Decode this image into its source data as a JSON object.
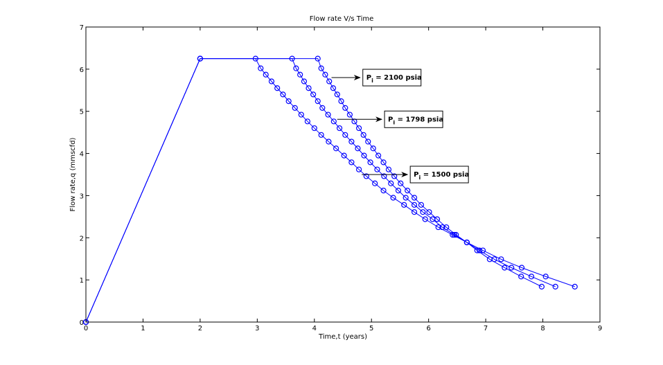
{
  "chart_data": {
    "type": "line",
    "title": "Flow rate V/s Time",
    "xlabel": "Time,t (years)",
    "ylabel": "Flow rate,q (mmscfd)",
    "xlim": [
      0,
      9
    ],
    "ylim": [
      0,
      7
    ],
    "xticks": [
      "0",
      "1",
      "2",
      "3",
      "4",
      "5",
      "6",
      "7",
      "8",
      "9"
    ],
    "yticks": [
      "0",
      "1",
      "2",
      "3",
      "4",
      "5",
      "6",
      "7"
    ],
    "grid": false,
    "color": "#0000ff",
    "marker": "open-circle",
    "series": [
      {
        "t": [
          0,
          2,
          2.97,
          3.06,
          3.15,
          3.25,
          3.35,
          3.45,
          3.55,
          3.66,
          3.77,
          3.88,
          4.0,
          4.12,
          4.25,
          4.38,
          4.52,
          4.65,
          4.78,
          4.91,
          5.06,
          5.21,
          5.38,
          5.57,
          5.75,
          5.94,
          6.17,
          6.42,
          6.67,
          6.95,
          7.27,
          7.63,
          8.05,
          8.56
        ],
        "q": [
          0,
          6.25,
          6.25,
          6.02,
          5.87,
          5.71,
          5.55,
          5.4,
          5.24,
          5.08,
          4.92,
          4.76,
          4.6,
          4.44,
          4.28,
          4.12,
          3.95,
          3.79,
          3.62,
          3.46,
          3.29,
          3.12,
          2.95,
          2.78,
          2.61,
          2.44,
          2.25,
          2.07,
          1.89,
          1.7,
          1.49,
          1.29,
          1.08,
          0.84
        ]
      },
      {
        "t": [
          0,
          2,
          3.61,
          3.68,
          3.75,
          3.82,
          3.9,
          3.98,
          4.06,
          4.14,
          4.24,
          4.34,
          4.44,
          4.54,
          4.65,
          4.76,
          4.87,
          4.98,
          5.1,
          5.22,
          5.34,
          5.47,
          5.6,
          5.75,
          5.9,
          6.07,
          6.24,
          6.45,
          6.67,
          6.89,
          7.15,
          7.45,
          7.8,
          8.22
        ],
        "q": [
          0,
          6.25,
          6.25,
          6.02,
          5.87,
          5.71,
          5.55,
          5.4,
          5.24,
          5.08,
          4.92,
          4.76,
          4.6,
          4.44,
          4.28,
          4.12,
          3.95,
          3.79,
          3.62,
          3.46,
          3.29,
          3.12,
          2.95,
          2.78,
          2.61,
          2.44,
          2.25,
          2.07,
          1.89,
          1.7,
          1.49,
          1.29,
          1.08,
          0.84
        ]
      },
      {
        "t": [
          0,
          2,
          4.06,
          4.12,
          4.19,
          4.26,
          4.33,
          4.4,
          4.47,
          4.54,
          4.62,
          4.7,
          4.78,
          4.86,
          4.94,
          5.03,
          5.12,
          5.21,
          5.3,
          5.4,
          5.51,
          5.63,
          5.75,
          5.87,
          6.01,
          6.15,
          6.31,
          6.48,
          6.67,
          6.85,
          7.07,
          7.33,
          7.62,
          7.98
        ],
        "q": [
          0,
          6.25,
          6.25,
          6.02,
          5.87,
          5.71,
          5.55,
          5.4,
          5.24,
          5.08,
          4.92,
          4.76,
          4.6,
          4.44,
          4.28,
          4.12,
          3.95,
          3.79,
          3.62,
          3.46,
          3.29,
          3.12,
          2.95,
          2.78,
          2.61,
          2.44,
          2.25,
          2.07,
          1.89,
          1.7,
          1.49,
          1.29,
          1.08,
          0.84
        ]
      }
    ],
    "annotations": [
      {
        "label_main": "P",
        "label_sub": "i",
        "label_rest": " = 2100 psia",
        "arrow_from": [
          4.3,
          5.8
        ],
        "arrow_to": [
          4.8,
          5.8
        ]
      },
      {
        "label_main": "P",
        "label_sub": "i",
        "label_rest": " = 1798 psia",
        "arrow_from": [
          4.4,
          4.81
        ],
        "arrow_to": [
          5.18,
          4.81
        ]
      },
      {
        "label_main": "P",
        "label_sub": "i",
        "label_rest": " = 1500 psia",
        "arrow_from": [
          4.83,
          3.5
        ],
        "arrow_to": [
          5.63,
          3.5
        ]
      }
    ]
  }
}
